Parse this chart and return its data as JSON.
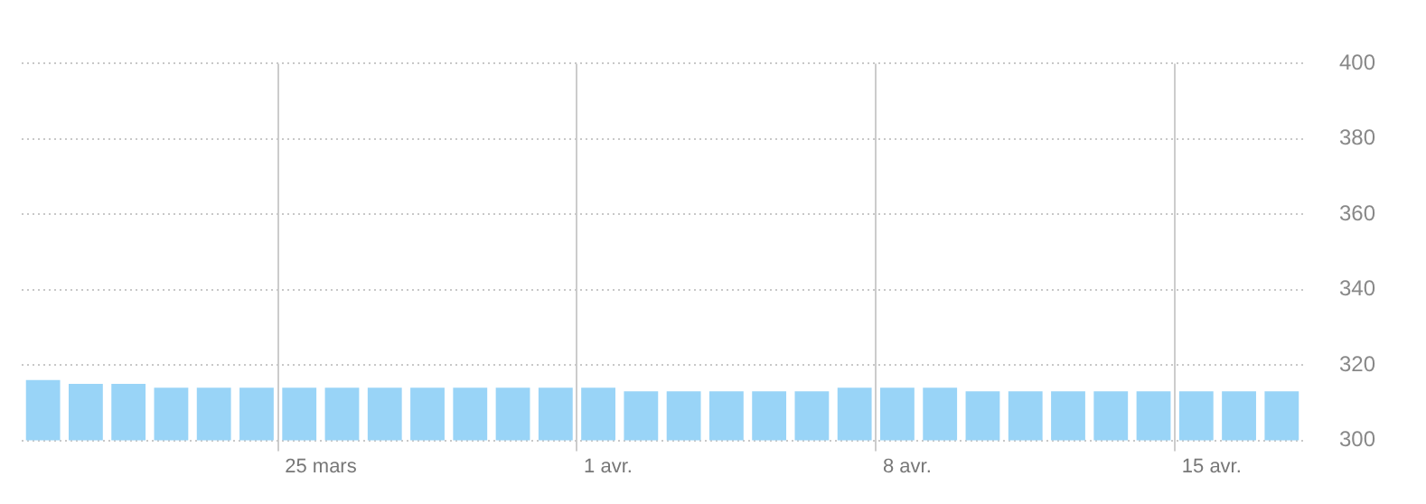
{
  "chart_data": {
    "type": "bar",
    "categories": [
      null,
      null,
      null,
      null,
      null,
      null,
      "25 mars",
      null,
      null,
      null,
      null,
      null,
      null,
      "1 avr.",
      null,
      null,
      null,
      null,
      null,
      null,
      "8 avr.",
      null,
      null,
      null,
      null,
      null,
      null,
      "15 avr.",
      null,
      null
    ],
    "values": [
      316,
      315,
      315,
      314,
      314,
      314,
      314,
      314,
      314,
      314,
      314,
      314,
      314,
      314,
      313,
      313,
      313,
      313,
      313,
      314,
      314,
      314,
      313,
      313,
      313,
      313,
      313,
      313,
      313,
      313
    ],
    "color": "#99d4f7",
    "ylim": [
      300,
      400
    ],
    "yticks": [
      300,
      320,
      340,
      360,
      380,
      400
    ],
    "grid": true,
    "legend": false
  }
}
